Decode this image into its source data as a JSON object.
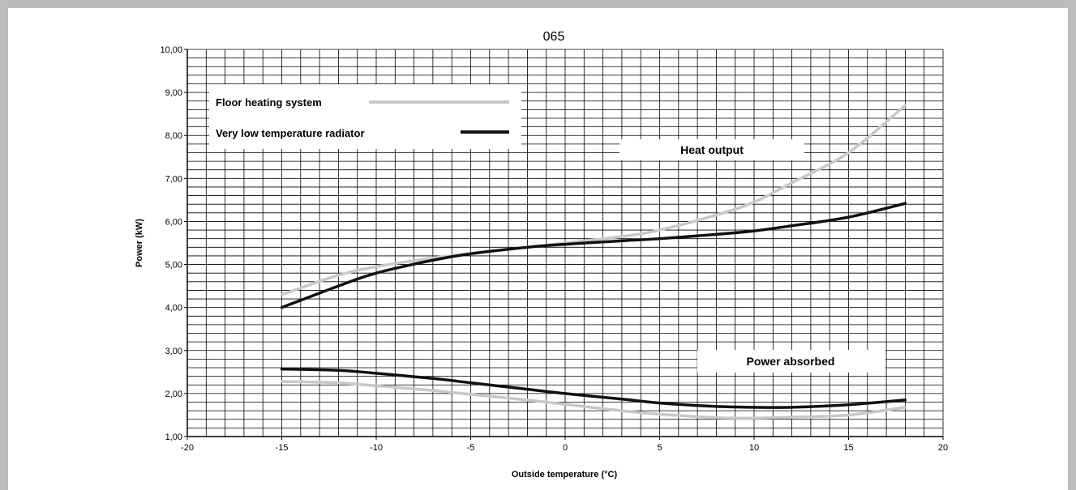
{
  "chart_data": {
    "type": "line",
    "title": "065",
    "xlabel": "Outside temperature   (°C)",
    "ylabel": "Power  (kW)",
    "xlim": [
      -20,
      20
    ],
    "ylim": [
      1,
      10
    ],
    "x_ticks": [
      "-20",
      "-15",
      "-10",
      "-5",
      "0",
      "5",
      "10",
      "15",
      "20"
    ],
    "y_ticks": [
      "1,00",
      "2,00",
      "3,00",
      "4,00",
      "5,00",
      "6,00",
      "7,00",
      "8,00",
      "9,00",
      "10,00"
    ],
    "grid": true,
    "legend_position": "top-left",
    "annotations": [
      "Heat output",
      "Power absorbed"
    ],
    "series": [
      {
        "name": "Floor heating system",
        "group": "Heat output",
        "color": "#c8c8c8",
        "x": [
          -15,
          -12,
          -10,
          -7,
          -5,
          -2,
          0,
          3,
          5,
          8,
          10,
          12,
          15,
          18
        ],
        "y": [
          4.3,
          4.75,
          4.95,
          5.15,
          5.25,
          5.4,
          5.5,
          5.65,
          5.8,
          6.15,
          6.45,
          6.9,
          7.6,
          8.7
        ]
      },
      {
        "name": "Very low temperature radiator",
        "group": "Heat output",
        "color": "#111111",
        "x": [
          -15,
          -12,
          -10,
          -7,
          -5,
          -2,
          0,
          3,
          5,
          8,
          10,
          12,
          15,
          18
        ],
        "y": [
          4.0,
          4.5,
          4.8,
          5.1,
          5.25,
          5.4,
          5.47,
          5.55,
          5.6,
          5.7,
          5.78,
          5.9,
          6.1,
          6.42
        ]
      },
      {
        "name": "Floor heating system",
        "group": "Power absorbed",
        "color": "#c8c8c8",
        "x": [
          -15,
          -12,
          -10,
          -7,
          -5,
          -2,
          0,
          3,
          5,
          8,
          10,
          12,
          15,
          18
        ],
        "y": [
          2.28,
          2.25,
          2.18,
          2.07,
          1.98,
          1.85,
          1.75,
          1.6,
          1.52,
          1.44,
          1.43,
          1.45,
          1.5,
          1.68
        ]
      },
      {
        "name": "Very low temperature radiator",
        "group": "Power absorbed",
        "color": "#111111",
        "x": [
          -15,
          -12,
          -10,
          -7,
          -5,
          -2,
          0,
          3,
          5,
          8,
          10,
          12,
          15,
          18
        ],
        "y": [
          2.57,
          2.54,
          2.47,
          2.35,
          2.25,
          2.1,
          2.0,
          1.87,
          1.78,
          1.7,
          1.68,
          1.68,
          1.74,
          1.85
        ]
      }
    ]
  },
  "legend": {
    "items": [
      {
        "label": "Floor heating system",
        "color": "#c8c8c8"
      },
      {
        "label": "Very low temperature radiator",
        "color": "#111111"
      }
    ]
  }
}
